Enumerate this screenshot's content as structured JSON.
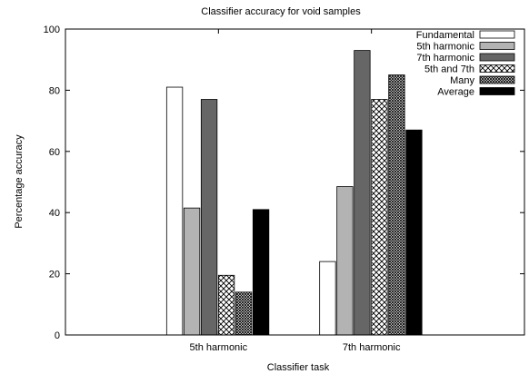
{
  "chart_data": {
    "type": "bar",
    "title": "Classifier accuracy for void samples",
    "xlabel": "Classifier task",
    "ylabel": "Percentage accuracy",
    "categories": [
      "5th harmonic",
      "7th harmonic"
    ],
    "ylim": [
      0,
      100
    ],
    "yticks": [
      0,
      20,
      40,
      60,
      80,
      100
    ],
    "grid": false,
    "legend_position": "top-right",
    "series": [
      {
        "name": "Fundamental",
        "fill": "white",
        "values": [
          81,
          24
        ]
      },
      {
        "name": "5th harmonic",
        "fill": "lightgray",
        "values": [
          41.5,
          48.5
        ]
      },
      {
        "name": "7th harmonic",
        "fill": "darkgray",
        "values": [
          77,
          93
        ]
      },
      {
        "name": "5th and 7th",
        "fill": "crosshatch-open",
        "values": [
          19.5,
          77
        ]
      },
      {
        "name": "Many",
        "fill": "crosshatch-dense",
        "values": [
          14,
          85
        ]
      },
      {
        "name": "Average",
        "fill": "black",
        "values": [
          41,
          67
        ]
      }
    ]
  }
}
